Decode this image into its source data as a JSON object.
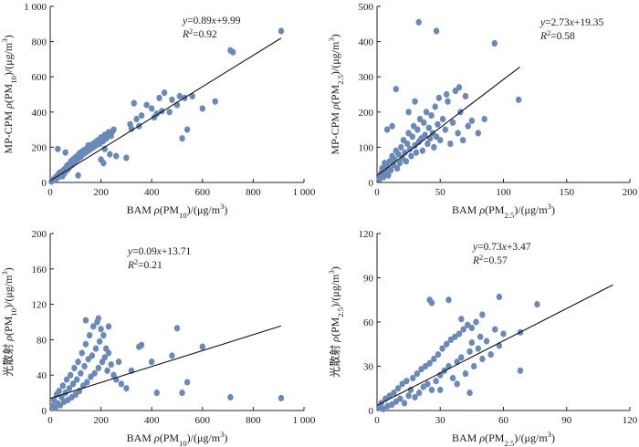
{
  "chart_data": [
    {
      "type": "scatter",
      "xlabel": "BAM ρ(PM10)/(μg/m3)",
      "ylabel": "MP-CPM ρ(PM10)/(μg/m3)",
      "xlim": [
        0,
        1000
      ],
      "ylim": [
        0,
        1000
      ],
      "xticks": [
        0,
        200,
        400,
        600,
        800,
        1000
      ],
      "yticks": [
        0,
        200,
        400,
        600,
        800,
        1000
      ],
      "xtick_labels": [
        "0",
        "200",
        "400",
        "600",
        "800",
        "1 000"
      ],
      "ytick_labels": [
        "0",
        "200",
        "400",
        "600",
        "800",
        "1 000"
      ],
      "fit": {
        "slope": 0.89,
        "intercept": 9.99,
        "x_range": [
          0,
          910
        ]
      },
      "equation": "y=0.89x+9.99",
      "r2": "R2=0.92",
      "points": [
        [
          5,
          5
        ],
        [
          12,
          15
        ],
        [
          18,
          25
        ],
        [
          22,
          18
        ],
        [
          28,
          40
        ],
        [
          32,
          30
        ],
        [
          36,
          55
        ],
        [
          40,
          45
        ],
        [
          45,
          60
        ],
        [
          48,
          35
        ],
        [
          52,
          70
        ],
        [
          55,
          50
        ],
        [
          60,
          80
        ],
        [
          62,
          65
        ],
        [
          66,
          95
        ],
        [
          70,
          75
        ],
        [
          75,
          105
        ],
        [
          78,
          90
        ],
        [
          82,
          120
        ],
        [
          86,
          100
        ],
        [
          90,
          130
        ],
        [
          94,
          115
        ],
        [
          98,
          140
        ],
        [
          102,
          125
        ],
        [
          106,
          150
        ],
        [
          110,
          135
        ],
        [
          115,
          165
        ],
        [
          120,
          145
        ],
        [
          125,
          175
        ],
        [
          130,
          160
        ],
        [
          135,
          185
        ],
        [
          140,
          170
        ],
        [
          145,
          195
        ],
        [
          150,
          180
        ],
        [
          155,
          205
        ],
        [
          160,
          190
        ],
        [
          165,
          215
        ],
        [
          170,
          200
        ],
        [
          175,
          225
        ],
        [
          180,
          210
        ],
        [
          188,
          240
        ],
        [
          195,
          220
        ],
        [
          200,
          255
        ],
        [
          208,
          235
        ],
        [
          215,
          270
        ],
        [
          222,
          250
        ],
        [
          230,
          285
        ],
        [
          240,
          265
        ],
        [
          250,
          300
        ],
        [
          30,
          190
        ],
        [
          60,
          170
        ],
        [
          110,
          40
        ],
        [
          150,
          210
        ],
        [
          180,
          230
        ],
        [
          200,
          130
        ],
        [
          210,
          110
        ],
        [
          215,
          190
        ],
        [
          225,
          275
        ],
        [
          235,
          160
        ],
        [
          245,
          290
        ],
        [
          260,
          150
        ],
        [
          300,
          140
        ],
        [
          315,
          330
        ],
        [
          320,
          305
        ],
        [
          330,
          450
        ],
        [
          340,
          360
        ],
        [
          350,
          320
        ],
        [
          360,
          380
        ],
        [
          380,
          440
        ],
        [
          400,
          420
        ],
        [
          410,
          370
        ],
        [
          420,
          390
        ],
        [
          430,
          480
        ],
        [
          440,
          405
        ],
        [
          450,
          510
        ],
        [
          470,
          400
        ],
        [
          480,
          470
        ],
        [
          500,
          440
        ],
        [
          510,
          490
        ],
        [
          520,
          250
        ],
        [
          530,
          480
        ],
        [
          540,
          300
        ],
        [
          560,
          490
        ],
        [
          600,
          420
        ],
        [
          650,
          460
        ],
        [
          710,
          750
        ],
        [
          720,
          740
        ],
        [
          910,
          860
        ]
      ]
    },
    {
      "type": "scatter",
      "xlabel": "BAM ρ(PM2.5)/(μg/m3)",
      "ylabel": "MP-CPM ρ(PM2.5)/(μg/m3)",
      "xlim": [
        0,
        200
      ],
      "ylim": [
        0,
        500
      ],
      "xticks": [
        0,
        50,
        100,
        150,
        200
      ],
      "yticks": [
        0,
        100,
        200,
        300,
        400,
        500
      ],
      "xtick_labels": [
        "0",
        "50",
        "100",
        "150",
        "200"
      ],
      "ytick_labels": [
        "0",
        "100",
        "200",
        "300",
        "400",
        "500"
      ],
      "fit": {
        "slope": 2.73,
        "intercept": 19.35,
        "x_range": [
          0,
          113
        ]
      },
      "equation": "y=2.73x+19.35",
      "r2": "R2=0.58",
      "points": [
        [
          2,
          10
        ],
        [
          3,
          25
        ],
        [
          4,
          40
        ],
        [
          5,
          15
        ],
        [
          6,
          55
        ],
        [
          7,
          30
        ],
        [
          8,
          45
        ],
        [
          9,
          20
        ],
        [
          10,
          60
        ],
        [
          11,
          35
        ],
        [
          12,
          75
        ],
        [
          13,
          50
        ],
        [
          14,
          65
        ],
        [
          15,
          90
        ],
        [
          16,
          40
        ],
        [
          17,
          80
        ],
        [
          18,
          55
        ],
        [
          19,
          100
        ],
        [
          20,
          70
        ],
        [
          21,
          120
        ],
        [
          22,
          85
        ],
        [
          23,
          60
        ],
        [
          24,
          110
        ],
        [
          25,
          140
        ],
        [
          26,
          95
        ],
        [
          27,
          75
        ],
        [
          28,
          130
        ],
        [
          29,
          160
        ],
        [
          30,
          105
        ],
        [
          31,
          85
        ],
        [
          32,
          150
        ],
        [
          33,
          115
        ],
        [
          34,
          180
        ],
        [
          35,
          125
        ],
        [
          36,
          90
        ],
        [
          37,
          170
        ],
        [
          38,
          135
        ],
        [
          39,
          200
        ],
        [
          40,
          110
        ],
        [
          41,
          155
        ],
        [
          42,
          125
        ],
        [
          43,
          190
        ],
        [
          44,
          140
        ],
        [
          45,
          100
        ],
        [
          46,
          215
        ],
        [
          47,
          130
        ],
        [
          48,
          165
        ],
        [
          49,
          240
        ],
        [
          50,
          120
        ],
        [
          52,
          180
        ],
        [
          54,
          150
        ],
        [
          56,
          230
        ],
        [
          58,
          110
        ],
        [
          60,
          170
        ],
        [
          62,
          260
        ],
        [
          64,
          140
        ],
        [
          66,
          200
        ],
        [
          68,
          120
        ],
        [
          70,
          245
        ],
        [
          72,
          160
        ],
        [
          15,
          265
        ],
        [
          33,
          455
        ],
        [
          47,
          430
        ],
        [
          93,
          395
        ],
        [
          112,
          235
        ],
        [
          25,
          200
        ],
        [
          30,
          230
        ],
        [
          55,
          250
        ],
        [
          65,
          270
        ],
        [
          75,
          175
        ],
        [
          80,
          140
        ],
        [
          85,
          180
        ],
        [
          8,
          150
        ],
        [
          12,
          160
        ]
      ]
    },
    {
      "type": "scatter",
      "xlabel": "BAM ρ(PM10)/(μg/m3)",
      "ylabel": "光散射 ρ(PM10)/(μg/m3)",
      "xlim": [
        0,
        1000
      ],
      "ylim": [
        0,
        200
      ],
      "xticks": [
        0,
        200,
        400,
        600,
        800,
        1000
      ],
      "yticks": [
        0,
        40,
        80,
        120,
        160,
        200
      ],
      "xtick_labels": [
        "0",
        "200",
        "400",
        "600",
        "800",
        "1 000"
      ],
      "ytick_labels": [
        "0",
        "40",
        "80",
        "120",
        "160",
        "200"
      ],
      "fit": {
        "slope": 0.09,
        "intercept": 13.71,
        "x_range": [
          0,
          910
        ]
      },
      "equation": "y=0.09x+13.71",
      "r2": "R2=0.21",
      "points": [
        [
          10,
          5
        ],
        [
          15,
          12
        ],
        [
          20,
          3
        ],
        [
          25,
          18
        ],
        [
          30,
          8
        ],
        [
          35,
          22
        ],
        [
          40,
          6
        ],
        [
          45,
          15
        ],
        [
          50,
          28
        ],
        [
          55,
          10
        ],
        [
          60,
          20
        ],
        [
          65,
          35
        ],
        [
          70,
          12
        ],
        [
          75,
          25
        ],
        [
          80,
          40
        ],
        [
          85,
          15
        ],
        [
          90,
          30
        ],
        [
          95,
          48
        ],
        [
          100,
          18
        ],
        [
          105,
          35
        ],
        [
          110,
          55
        ],
        [
          115,
          22
        ],
        [
          120,
          42
        ],
        [
          125,
          65
        ],
        [
          130,
          28
        ],
        [
          135,
          50
        ],
        [
          140,
          75
        ],
        [
          145,
          32
        ],
        [
          150,
          58
        ],
        [
          155,
          85
        ],
        [
          160,
          38
        ],
        [
          165,
          62
        ],
        [
          170,
          95
        ],
        [
          175,
          42
        ],
        [
          180,
          70
        ],
        [
          185,
          100
        ],
        [
          190,
          48
        ],
        [
          195,
          78
        ],
        [
          200,
          92
        ],
        [
          205,
          55
        ],
        [
          210,
          85
        ],
        [
          215,
          60
        ],
        [
          220,
          70
        ],
        [
          225,
          45
        ],
        [
          230,
          65
        ],
        [
          240,
          52
        ],
        [
          250,
          40
        ],
        [
          260,
          35
        ],
        [
          270,
          55
        ],
        [
          280,
          30
        ],
        [
          300,
          25
        ],
        [
          320,
          45
        ],
        [
          350,
          72
        ],
        [
          360,
          74
        ],
        [
          400,
          55
        ],
        [
          420,
          20
        ],
        [
          480,
          62
        ],
        [
          500,
          93
        ],
        [
          520,
          20
        ],
        [
          540,
          32
        ],
        [
          600,
          72
        ],
        [
          710,
          15
        ],
        [
          910,
          14
        ],
        [
          140,
          102
        ],
        [
          190,
          104
        ],
        [
          230,
          95
        ]
      ]
    },
    {
      "type": "scatter",
      "xlabel": "BAM ρ(PM2.5)/(μg/m3)",
      "ylabel": "光散射 ρ(PM2.5)/(μg/m3)",
      "xlim": [
        0,
        120
      ],
      "ylim": [
        0,
        120
      ],
      "xticks": [
        0,
        30,
        60,
        90,
        120
      ],
      "yticks": [
        0,
        30,
        60,
        90,
        120
      ],
      "xtick_labels": [
        "0",
        "30",
        "60",
        "90",
        "120"
      ],
      "ytick_labels": [
        "0",
        "30",
        "60",
        "90",
        "120"
      ],
      "fit": {
        "slope": 0.73,
        "intercept": 3.47,
        "x_range": [
          0,
          112
        ]
      },
      "equation": "y=0.73x+3.47",
      "r2": "R2=0.57",
      "points": [
        [
          1,
          2
        ],
        [
          2,
          5
        ],
        [
          3,
          1
        ],
        [
          4,
          8
        ],
        [
          5,
          3
        ],
        [
          6,
          10
        ],
        [
          7,
          4
        ],
        [
          8,
          12
        ],
        [
          9,
          6
        ],
        [
          10,
          15
        ],
        [
          11,
          8
        ],
        [
          12,
          18
        ],
        [
          13,
          5
        ],
        [
          14,
          20
        ],
        [
          15,
          10
        ],
        [
          16,
          14
        ],
        [
          17,
          22
        ],
        [
          18,
          9
        ],
        [
          19,
          25
        ],
        [
          20,
          12
        ],
        [
          21,
          28
        ],
        [
          22,
          16
        ],
        [
          23,
          30
        ],
        [
          24,
          18
        ],
        [
          25,
          32
        ],
        [
          26,
          14
        ],
        [
          27,
          35
        ],
        [
          28,
          20
        ],
        [
          29,
          38
        ],
        [
          30,
          24
        ],
        [
          31,
          42
        ],
        [
          32,
          27
        ],
        [
          33,
          45
        ],
        [
          34,
          30
        ],
        [
          35,
          48
        ],
        [
          36,
          22
        ],
        [
          37,
          50
        ],
        [
          38,
          33
        ],
        [
          39,
          52
        ],
        [
          40,
          36
        ],
        [
          41,
          55
        ],
        [
          42,
          25
        ],
        [
          43,
          58
        ],
        [
          44,
          40
        ],
        [
          45,
          46
        ],
        [
          46,
          30
        ],
        [
          47,
          60
        ],
        [
          48,
          42
        ],
        [
          49,
          50
        ],
        [
          50,
          35
        ],
        [
          52,
          47
        ],
        [
          54,
          38
        ],
        [
          56,
          55
        ],
        [
          58,
          44
        ],
        [
          60,
          52
        ],
        [
          25,
          75
        ],
        [
          26,
          73
        ],
        [
          34,
          75
        ],
        [
          50,
          65
        ],
        [
          58,
          77
        ],
        [
          68,
          53
        ],
        [
          68,
          27
        ],
        [
          76,
          72
        ],
        [
          40,
          62
        ],
        [
          45,
          56
        ],
        [
          44,
          12
        ],
        [
          30,
          14
        ],
        [
          38,
          18
        ]
      ]
    }
  ]
}
